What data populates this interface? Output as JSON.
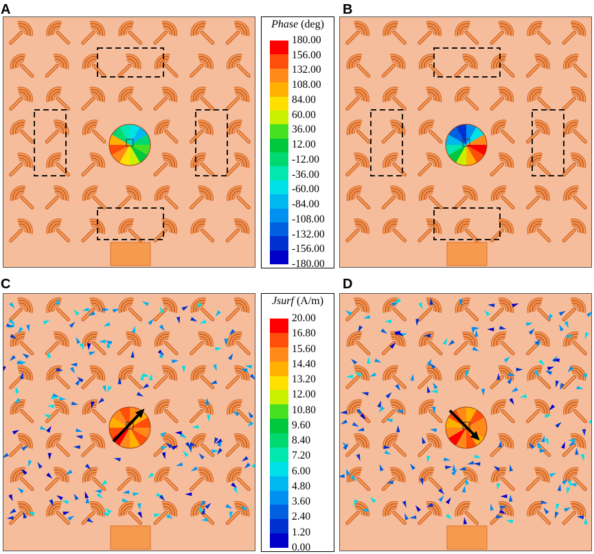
{
  "panels": [
    {
      "letter": "A",
      "mode": "phase-a"
    },
    {
      "letter": "B",
      "mode": "phase-b"
    },
    {
      "letter": "C",
      "mode": "current-c"
    },
    {
      "letter": "D",
      "mode": "current-d"
    }
  ],
  "legend_phase": {
    "title_symbol": "Phase",
    "title_unit": " (deg)",
    "labels": [
      "180.00",
      "156.00",
      "132.00",
      "108.00",
      "84.00",
      "60.00",
      "36.00",
      "12.00",
      "-12.00",
      "-36.00",
      "-60.00",
      "-84.00",
      "-108.00",
      "-132.00",
      "-156.00",
      "-180.00"
    ],
    "colors": [
      "#ff0000",
      "#ff4e0a",
      "#ff8a1a",
      "#ffb000",
      "#ffe000",
      "#c8f000",
      "#46e020",
      "#00c83c",
      "#00d870",
      "#00e8b0",
      "#00e0e8",
      "#00b8f0",
      "#0090f0",
      "#0060e0",
      "#0030d0",
      "#0000c8"
    ]
  },
  "legend_jsurf": {
    "title_symbol": "Jsurf",
    "title_unit": " (A/m)",
    "labels": [
      "20.00",
      "16.80",
      "15.60",
      "14.40",
      "13.20",
      "12.00",
      "10.80",
      "9.60",
      "8.40",
      "7.20",
      "6.00",
      "4.80",
      "3.60",
      "2.40",
      "1.20",
      "0.00"
    ],
    "colors": [
      "#ff0000",
      "#ff4e0a",
      "#ff8a1a",
      "#ffb000",
      "#ffe000",
      "#c8f000",
      "#46e020",
      "#00c83c",
      "#00d870",
      "#00e8b0",
      "#00e0e8",
      "#00b8f0",
      "#0090f0",
      "#0060e0",
      "#0030d0",
      "#0000c8"
    ]
  },
  "colors": {
    "substrate": "#f6bd9c",
    "element": "#f29a55",
    "element_stroke": "#c9541a",
    "feed_port": "#f59a4e",
    "arrow_black": "#000000"
  }
}
